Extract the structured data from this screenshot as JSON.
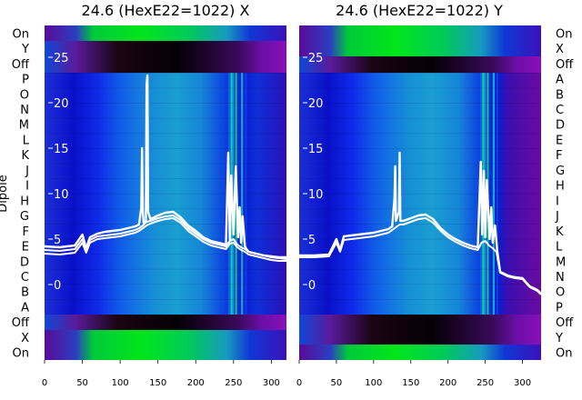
{
  "figure": {
    "ylabel": "Dipole"
  },
  "chart_data": [
    {
      "type": "heatmap",
      "title": "24.6 (HexE22=1022) X",
      "row_labels_left": [
        "On",
        "X",
        "Off",
        "A",
        "B",
        "C",
        "D",
        "E",
        "F",
        "G",
        "H",
        "I",
        "J",
        "K",
        "L",
        "M",
        "N",
        "O",
        "P",
        "Off",
        "Y",
        "On"
      ],
      "x_ticks": [
        0,
        50,
        100,
        150,
        200,
        250,
        300
      ],
      "xlim": [
        0,
        320
      ],
      "overlay_y_ticks": [
        0,
        5,
        10,
        15,
        20,
        25
      ],
      "overlay_ylim": [
        -8.3,
        28.5
      ],
      "overlay_series": [
        {
          "x": [
            0,
            20,
            40,
            50,
            55,
            60,
            70,
            80,
            90,
            100,
            110,
            120,
            125,
            128,
            129,
            130,
            131,
            134,
            135,
            136,
            137,
            140,
            150,
            160,
            170,
            180,
            190,
            200,
            210,
            220,
            230,
            240,
            243,
            245,
            247,
            250,
            253,
            256,
            258,
            260,
            262,
            265,
            268,
            270,
            280,
            290,
            300,
            310,
            320
          ],
          "y": [
            4.2,
            4.1,
            4.3,
            5.5,
            4.0,
            5.2,
            5.6,
            5.8,
            5.9,
            6.0,
            6.2,
            6.4,
            6.6,
            8.5,
            15,
            8.0,
            6.8,
            7.0,
            22,
            23,
            8.0,
            7.2,
            7.6,
            7.9,
            8.0,
            7.4,
            6.5,
            5.9,
            5.2,
            4.8,
            4.6,
            4.4,
            14.5,
            5.0,
            12,
            5.5,
            13,
            5.2,
            8.5,
            4.6,
            7.5,
            4.2,
            3.8,
            3.6,
            3.4,
            3.2,
            3.1,
            3.0,
            3.0
          ]
        },
        {
          "x": [
            0,
            20,
            40,
            50,
            55,
            60,
            70,
            80,
            90,
            100,
            110,
            120,
            125,
            130,
            135,
            140,
            150,
            160,
            170,
            180,
            190,
            200,
            210,
            220,
            230,
            240,
            245,
            250,
            255,
            260,
            265,
            270,
            280,
            290,
            300,
            310,
            320
          ],
          "y": [
            3.8,
            3.7,
            3.9,
            5.0,
            3.8,
            4.9,
            5.3,
            5.4,
            5.5,
            5.6,
            5.8,
            6.0,
            6.2,
            6.5,
            6.9,
            7.0,
            7.3,
            7.5,
            7.6,
            7.1,
            6.2,
            5.6,
            5.0,
            4.6,
            4.4,
            4.2,
            4.8,
            5.0,
            4.4,
            4.1,
            3.9,
            3.6,
            3.4,
            3.2,
            3.0,
            2.9,
            2.8
          ]
        },
        {
          "x": [
            0,
            20,
            40,
            50,
            55,
            60,
            70,
            80,
            90,
            100,
            110,
            120,
            125,
            130,
            135,
            140,
            150,
            160,
            170,
            180,
            190,
            200,
            210,
            220,
            230,
            240,
            245,
            250,
            255,
            260,
            265,
            270,
            280,
            290,
            300,
            310,
            320
          ],
          "y": [
            3.4,
            3.3,
            3.5,
            4.6,
            3.5,
            4.6,
            5.0,
            5.1,
            5.2,
            5.3,
            5.5,
            5.7,
            5.9,
            6.2,
            6.5,
            6.7,
            7.0,
            7.2,
            7.3,
            6.8,
            5.9,
            5.3,
            4.7,
            4.3,
            4.1,
            3.9,
            4.5,
            4.6,
            4.1,
            3.8,
            3.6,
            3.3,
            3.1,
            2.9,
            2.7,
            2.6,
            2.6
          ]
        }
      ]
    },
    {
      "type": "heatmap",
      "title": "24.6 (HexE22=1022) Y",
      "row_labels_right": [
        "On",
        "Y",
        "Off",
        "P",
        "O",
        "N",
        "M",
        "L",
        "K",
        "J",
        "I",
        "H",
        "G",
        "F",
        "E",
        "D",
        "C",
        "B",
        "A",
        "Off",
        "X",
        "On"
      ],
      "x_ticks": [
        0,
        50,
        100,
        150,
        200,
        250,
        300
      ],
      "xlim": [
        0,
        325
      ],
      "overlay_y_ticks": [
        0,
        5,
        10,
        15,
        20,
        25
      ],
      "overlay_ylim": [
        -8.3,
        28.5
      ],
      "overlay_series": [
        {
          "x": [
            0,
            20,
            40,
            50,
            55,
            60,
            70,
            80,
            90,
            100,
            110,
            120,
            125,
            128,
            129,
            130,
            134,
            135,
            136,
            140,
            150,
            160,
            170,
            180,
            190,
            200,
            210,
            220,
            230,
            240,
            244,
            246,
            248,
            250,
            252,
            256,
            258,
            260,
            263,
            266,
            270,
            280,
            290,
            300,
            310,
            320,
            325
          ],
          "y": [
            3.2,
            3.2,
            3.3,
            5.0,
            3.8,
            5.3,
            5.4,
            5.5,
            5.6,
            5.7,
            5.9,
            6.1,
            6.4,
            9.5,
            13,
            7.0,
            8.0,
            14.5,
            7.0,
            7.0,
            7.3,
            7.6,
            7.7,
            7.2,
            6.2,
            5.5,
            5.0,
            4.6,
            4.3,
            4.1,
            13.5,
            5.5,
            12.5,
            5.2,
            11.5,
            5.0,
            8.5,
            4.6,
            6.5,
            3.8,
            1.4,
            1.0,
            0.8,
            0.7,
            -0.2,
            -0.6,
            -1.0
          ]
        },
        {
          "x": [
            0,
            20,
            40,
            50,
            55,
            60,
            70,
            80,
            90,
            100,
            110,
            120,
            125,
            130,
            135,
            140,
            150,
            160,
            170,
            180,
            190,
            200,
            210,
            220,
            230,
            240,
            245,
            250,
            255,
            260,
            265,
            270,
            280,
            290,
            300,
            310,
            320,
            325
          ],
          "y": [
            3.0,
            3.0,
            3.1,
            4.6,
            3.6,
            4.9,
            5.0,
            5.1,
            5.2,
            5.3,
            5.5,
            5.7,
            6.0,
            6.3,
            6.6,
            6.6,
            6.9,
            7.2,
            7.3,
            6.8,
            5.9,
            5.2,
            4.7,
            4.3,
            4.0,
            3.8,
            4.6,
            4.8,
            4.3,
            4.0,
            3.6,
            1.3,
            0.9,
            0.7,
            0.6,
            -0.3,
            -0.7,
            -1.1
          ]
        }
      ]
    }
  ]
}
